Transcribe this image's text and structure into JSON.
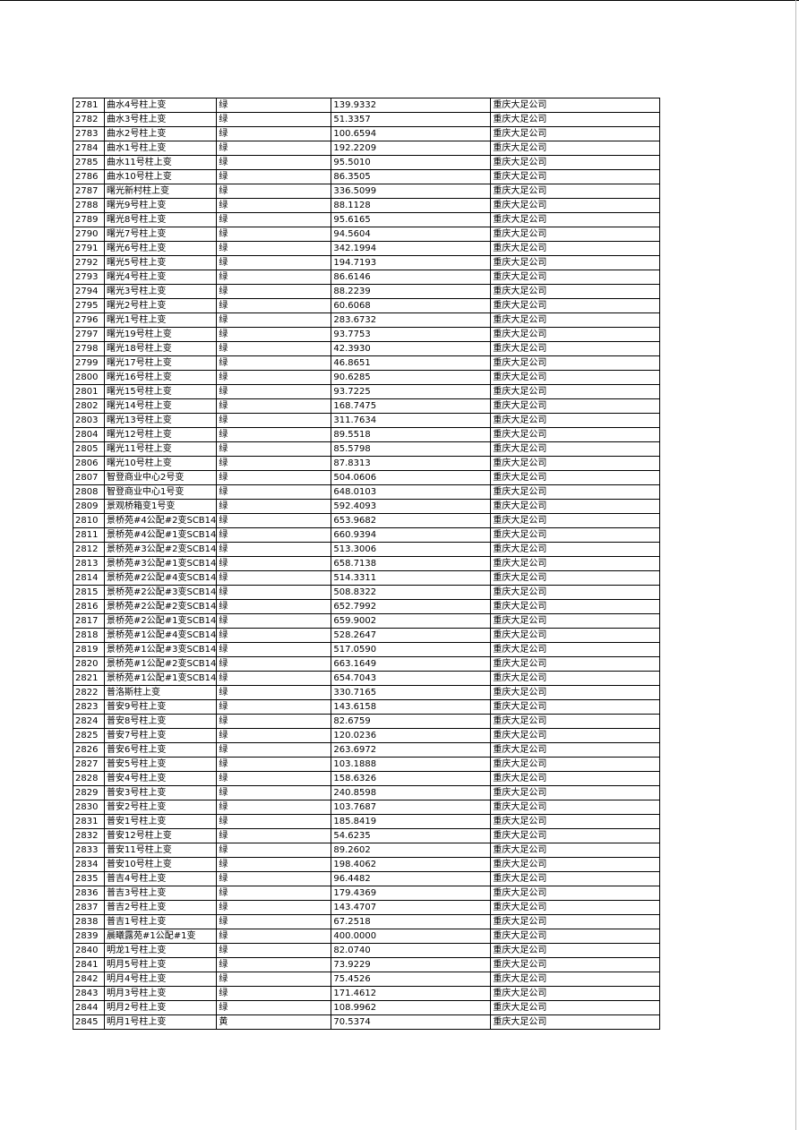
{
  "table": {
    "rows": [
      [
        "2781",
        "曲水4号柱上变",
        "绿",
        "139.9332",
        "重庆大足公司"
      ],
      [
        "2782",
        "曲水3号柱上变",
        "绿",
        "51.3357",
        "重庆大足公司"
      ],
      [
        "2783",
        "曲水2号柱上变",
        "绿",
        "100.6594",
        "重庆大足公司"
      ],
      [
        "2784",
        "曲水1号柱上变",
        "绿",
        "192.2209",
        "重庆大足公司"
      ],
      [
        "2785",
        "曲水11号柱上变",
        "绿",
        "95.5010",
        "重庆大足公司"
      ],
      [
        "2786",
        "曲水10号柱上变",
        "绿",
        "86.3505",
        "重庆大足公司"
      ],
      [
        "2787",
        "曙光新村柱上变",
        "绿",
        "336.5099",
        "重庆大足公司"
      ],
      [
        "2788",
        "曙光9号柱上变",
        "绿",
        "88.1128",
        "重庆大足公司"
      ],
      [
        "2789",
        "曙光8号柱上变",
        "绿",
        "95.6165",
        "重庆大足公司"
      ],
      [
        "2790",
        "曙光7号柱上变",
        "绿",
        "94.5604",
        "重庆大足公司"
      ],
      [
        "2791",
        "曙光6号柱上变",
        "绿",
        "342.1994",
        "重庆大足公司"
      ],
      [
        "2792",
        "曙光5号柱上变",
        "绿",
        "194.7193",
        "重庆大足公司"
      ],
      [
        "2793",
        "曙光4号柱上变",
        "绿",
        "86.6146",
        "重庆大足公司"
      ],
      [
        "2794",
        "曙光3号柱上变",
        "绿",
        "88.2239",
        "重庆大足公司"
      ],
      [
        "2795",
        "曙光2号柱上变",
        "绿",
        "60.6068",
        "重庆大足公司"
      ],
      [
        "2796",
        "曙光1号柱上变",
        "绿",
        "283.6732",
        "重庆大足公司"
      ],
      [
        "2797",
        "曙光19号柱上变",
        "绿",
        "93.7753",
        "重庆大足公司"
      ],
      [
        "2798",
        "曙光18号柱上变",
        "绿",
        "42.3930",
        "重庆大足公司"
      ],
      [
        "2799",
        "曙光17号柱上变",
        "绿",
        "46.8651",
        "重庆大足公司"
      ],
      [
        "2800",
        "曙光16号柱上变",
        "绿",
        "90.6285",
        "重庆大足公司"
      ],
      [
        "2801",
        "曙光15号柱上变",
        "绿",
        "93.7225",
        "重庆大足公司"
      ],
      [
        "2802",
        "曙光14号柱上变",
        "绿",
        "168.7475",
        "重庆大足公司"
      ],
      [
        "2803",
        "曙光13号柱上变",
        "绿",
        "311.7634",
        "重庆大足公司"
      ],
      [
        "2804",
        "曙光12号柱上变",
        "绿",
        "89.5518",
        "重庆大足公司"
      ],
      [
        "2805",
        "曙光11号柱上变",
        "绿",
        "85.5798",
        "重庆大足公司"
      ],
      [
        "2806",
        "曙光10号柱上变",
        "绿",
        "87.8313",
        "重庆大足公司"
      ],
      [
        "2807",
        "智登商业中心2号变",
        "绿",
        "504.0606",
        "重庆大足公司"
      ],
      [
        "2808",
        "智登商业中心1号变",
        "绿",
        "648.0103",
        "重庆大足公司"
      ],
      [
        "2809",
        "景观桥箱变1号变",
        "绿",
        "592.4093",
        "重庆大足公司"
      ],
      [
        "2810",
        "景桥苑#4公配#2变SCB14",
        "绿",
        "653.9682",
        "重庆大足公司"
      ],
      [
        "2811",
        "景桥苑#4公配#1变SCB14",
        "绿",
        "660.9394",
        "重庆大足公司"
      ],
      [
        "2812",
        "景桥苑#3公配#2变SCB14",
        "绿",
        "513.3006",
        "重庆大足公司"
      ],
      [
        "2813",
        "景桥苑#3公配#1变SCB14",
        "绿",
        "658.7138",
        "重庆大足公司"
      ],
      [
        "2814",
        "景桥苑#2公配#4变SCB14",
        "绿",
        "514.3311",
        "重庆大足公司"
      ],
      [
        "2815",
        "景桥苑#2公配#3变SCB14",
        "绿",
        "508.8322",
        "重庆大足公司"
      ],
      [
        "2816",
        "景桥苑#2公配#2变SCB14",
        "绿",
        "652.7992",
        "重庆大足公司"
      ],
      [
        "2817",
        "景桥苑#2公配#1变SCB14",
        "绿",
        "659.9002",
        "重庆大足公司"
      ],
      [
        "2818",
        "景桥苑#1公配#4变SCB14",
        "绿",
        "528.2647",
        "重庆大足公司"
      ],
      [
        "2819",
        "景桥苑#1公配#3变SCB14",
        "绿",
        "517.0590",
        "重庆大足公司"
      ],
      [
        "2820",
        "景桥苑#1公配#2变SCB14",
        "绿",
        "663.1649",
        "重庆大足公司"
      ],
      [
        "2821",
        "景桥苑#1公配#1变SCB14",
        "绿",
        "654.7043",
        "重庆大足公司"
      ],
      [
        "2822",
        "普洛斯柱上变",
        "绿",
        "330.7165",
        "重庆大足公司"
      ],
      [
        "2823",
        "普安9号柱上变",
        "绿",
        "143.6158",
        "重庆大足公司"
      ],
      [
        "2824",
        "普安8号柱上变",
        "绿",
        "82.6759",
        "重庆大足公司"
      ],
      [
        "2825",
        "普安7号柱上变",
        "绿",
        "120.0236",
        "重庆大足公司"
      ],
      [
        "2826",
        "普安6号柱上变",
        "绿",
        "263.6972",
        "重庆大足公司"
      ],
      [
        "2827",
        "普安5号柱上变",
        "绿",
        "103.1888",
        "重庆大足公司"
      ],
      [
        "2828",
        "普安4号柱上变",
        "绿",
        "158.6326",
        "重庆大足公司"
      ],
      [
        "2829",
        "普安3号柱上变",
        "绿",
        "240.8598",
        "重庆大足公司"
      ],
      [
        "2830",
        "普安2号柱上变",
        "绿",
        "103.7687",
        "重庆大足公司"
      ],
      [
        "2831",
        "普安1号柱上变",
        "绿",
        "185.8419",
        "重庆大足公司"
      ],
      [
        "2832",
        "普安12号柱上变",
        "绿",
        "54.6235",
        "重庆大足公司"
      ],
      [
        "2833",
        "普安11号柱上变",
        "绿",
        "89.2602",
        "重庆大足公司"
      ],
      [
        "2834",
        "普安10号柱上变",
        "绿",
        "198.4062",
        "重庆大足公司"
      ],
      [
        "2835",
        "普吉4号柱上变",
        "绿",
        "96.4482",
        "重庆大足公司"
      ],
      [
        "2836",
        "普吉3号柱上变",
        "绿",
        "179.4369",
        "重庆大足公司"
      ],
      [
        "2837",
        "普吉2号柱上变",
        "绿",
        "143.4707",
        "重庆大足公司"
      ],
      [
        "2838",
        "普吉1号柱上变",
        "绿",
        "67.2518",
        "重庆大足公司"
      ],
      [
        "2839",
        "晨曦露苑#1公配#1变",
        "绿",
        "400.0000",
        "重庆大足公司"
      ],
      [
        "2840",
        "明龙1号柱上变",
        "绿",
        "82.0740",
        "重庆大足公司"
      ],
      [
        "2841",
        "明月5号柱上变",
        "绿",
        "73.9229",
        "重庆大足公司"
      ],
      [
        "2842",
        "明月4号柱上变",
        "绿",
        "75.4526",
        "重庆大足公司"
      ],
      [
        "2843",
        "明月3号柱上变",
        "绿",
        "171.4612",
        "重庆大足公司"
      ],
      [
        "2844",
        "明月2号柱上变",
        "绿",
        "108.9962",
        "重庆大足公司"
      ],
      [
        "2845",
        "明月1号柱上变",
        "黄",
        "70.5374",
        "重庆大足公司"
      ]
    ]
  }
}
